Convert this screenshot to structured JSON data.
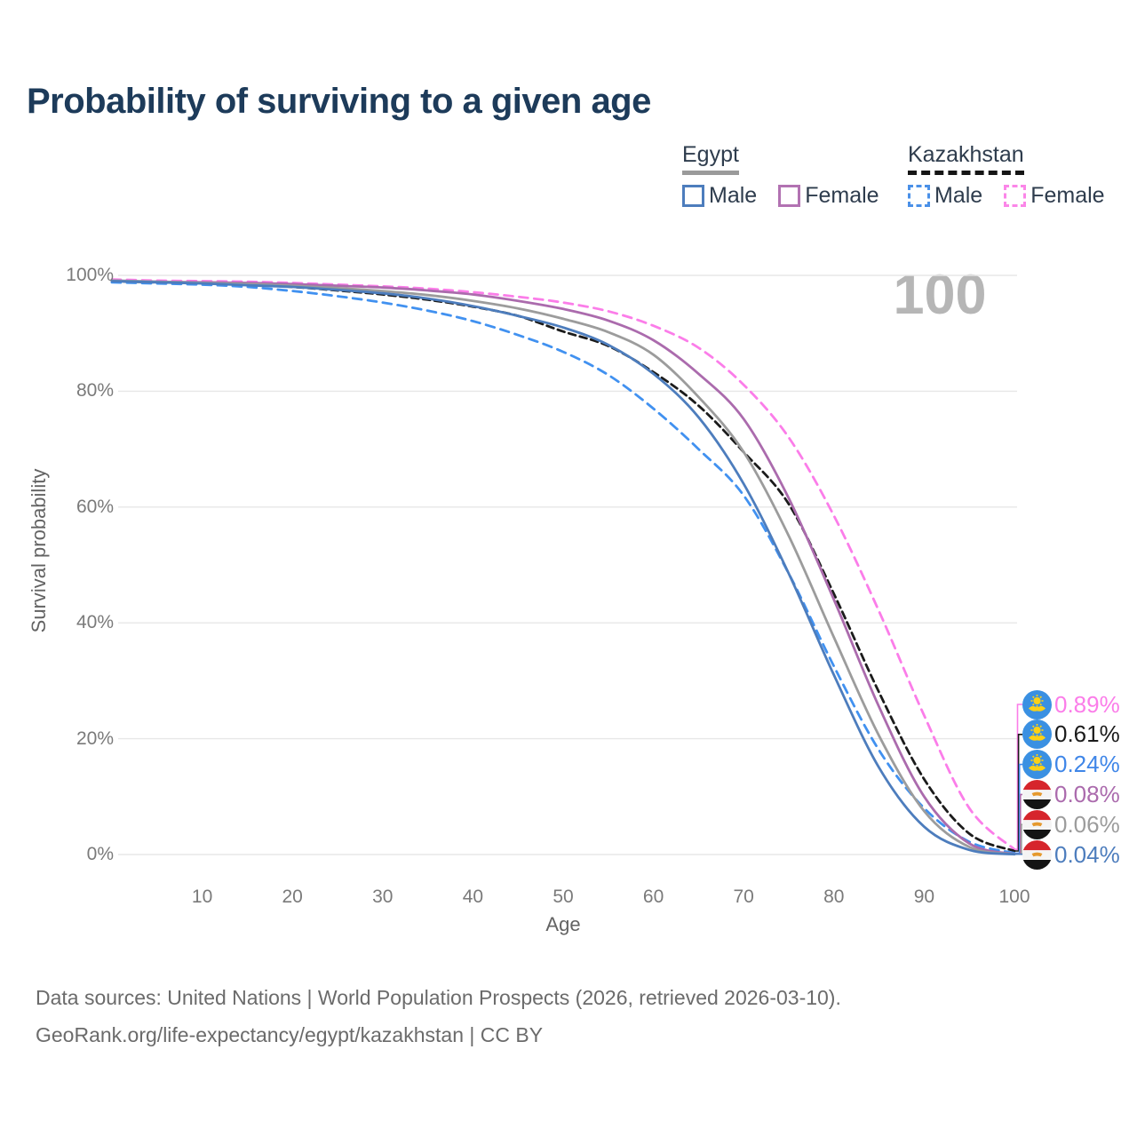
{
  "title": "Probability of surviving to a given age",
  "watermark_age_label": "100",
  "legend": {
    "groups": [
      {
        "label": "Egypt",
        "line_style": "solid",
        "underline_color": "#9a9a9a",
        "items": [
          {
            "label": "Male",
            "color": "#4d7dbd"
          },
          {
            "label": "Female",
            "color": "#b272b2"
          }
        ]
      },
      {
        "label": "Kazakhstan",
        "line_style": "dashed",
        "underline_color": "#151515",
        "items": [
          {
            "label": "Male",
            "color": "#4a90e8"
          },
          {
            "label": "Female",
            "color": "#fb86e8"
          }
        ]
      }
    ]
  },
  "axes": {
    "y_label": "Survival probability",
    "x_label": "Age",
    "y_ticks": [
      "100%",
      "80%",
      "60%",
      "40%",
      "20%",
      "0%"
    ],
    "y_tick_values": [
      100,
      80,
      60,
      40,
      20,
      0
    ],
    "x_ticks": [
      "10",
      "20",
      "30",
      "40",
      "50",
      "60",
      "70",
      "80",
      "90",
      "100"
    ],
    "x_tick_values": [
      10,
      20,
      30,
      40,
      50,
      60,
      70,
      80,
      90,
      100
    ]
  },
  "chart_data": {
    "type": "line",
    "title": "Probability of surviving to a given age",
    "xlabel": "Age",
    "ylabel": "Survival probability",
    "xlim": [
      0,
      100
    ],
    "ylim": [
      0,
      100
    ],
    "grid": "horizontal-only",
    "legend_position": "top-right",
    "x": [
      0,
      5,
      10,
      15,
      20,
      25,
      30,
      35,
      40,
      45,
      50,
      55,
      60,
      65,
      70,
      75,
      80,
      85,
      90,
      95,
      100
    ],
    "series": [
      {
        "name": "Kazakhstan Female",
        "color": "#fb7de9",
        "dash": true,
        "dash_pattern": "10 7",
        "values": [
          99.3,
          99.1,
          99.0,
          98.9,
          98.7,
          98.4,
          98.1,
          97.7,
          97.1,
          96.3,
          95.3,
          93.8,
          91.3,
          87.5,
          81.1,
          72.0,
          58.5,
          42.0,
          24.0,
          8.0,
          0.89
        ],
        "end_label": "0.89%"
      },
      {
        "name": "Kazakhstan Both sexes",
        "color": "#1b1b1b",
        "dash": true,
        "dash_pattern": "8 5",
        "values": [
          99.0,
          98.8,
          98.7,
          98.4,
          98.0,
          97.4,
          96.7,
          95.8,
          94.6,
          93.0,
          90.3,
          87.8,
          83.3,
          77.5,
          69.5,
          60.5,
          45.0,
          28.0,
          13.0,
          3.6,
          0.61
        ],
        "end_label": "0.61%"
      },
      {
        "name": "Kazakhstan Male",
        "color": "#4191f0",
        "dash": true,
        "dash_pattern": "10 7",
        "values": [
          98.8,
          98.6,
          98.4,
          98.0,
          97.3,
          96.4,
          95.3,
          93.9,
          92.1,
          89.7,
          86.8,
          82.8,
          77.0,
          70.0,
          62.0,
          48.5,
          32.5,
          18.0,
          8.0,
          2.2,
          0.24
        ],
        "end_label": "0.24%"
      },
      {
        "name": "Egypt Female",
        "color": "#ab6bad",
        "dash": false,
        "dash_pattern": "",
        "values": [
          99.1,
          98.9,
          98.8,
          98.7,
          98.5,
          98.2,
          97.9,
          97.4,
          96.7,
          95.6,
          94.2,
          92.2,
          88.8,
          83.0,
          75.2,
          61.5,
          44.0,
          25.5,
          10.0,
          1.9,
          0.08
        ],
        "end_label": "0.08%"
      },
      {
        "name": "Egypt Both sexes",
        "color": "#9c9c9c",
        "dash": false,
        "dash_pattern": "",
        "values": [
          99.1,
          98.9,
          98.7,
          98.5,
          98.2,
          97.8,
          97.3,
          96.6,
          95.6,
          94.3,
          92.5,
          90.2,
          86.3,
          79.0,
          69.5,
          55.0,
          37.5,
          20.5,
          7.5,
          1.3,
          0.06
        ],
        "end_label": "0.06%"
      },
      {
        "name": "Egypt Male",
        "color": "#4d7dbd",
        "dash": false,
        "dash_pattern": "",
        "values": [
          99.0,
          98.8,
          98.6,
          98.3,
          98.0,
          97.5,
          96.9,
          96.0,
          94.7,
          93.0,
          91.0,
          88.0,
          83.0,
          75.5,
          64.0,
          48.5,
          31.0,
          15.0,
          4.8,
          0.8,
          0.04
        ],
        "end_label": "0.04%"
      }
    ]
  },
  "end_labels": [
    {
      "flag": "kazakhstan-flag-icon",
      "value": "0.89%",
      "color": "#fb7de9"
    },
    {
      "flag": "kazakhstan-flag-icon",
      "value": "0.61%",
      "color": "#1b1b1b"
    },
    {
      "flag": "kazakhstan-flag-icon",
      "value": "0.24%",
      "color": "#3f86e8"
    },
    {
      "flag": "egypt-flag-icon",
      "value": "0.08%",
      "color": "#ab6bad"
    },
    {
      "flag": "egypt-flag-icon",
      "value": "0.06%",
      "color": "#9c9c9c"
    },
    {
      "flag": "egypt-flag-icon",
      "value": "0.04%",
      "color": "#4d7dbd"
    }
  ],
  "footer": {
    "line1": "Data sources: United Nations | World Population Prospects (2026, retrieved 2026-03-10).",
    "line2": "GeoRank.org/life-expectancy/egypt/kazakhstan | CC BY"
  }
}
